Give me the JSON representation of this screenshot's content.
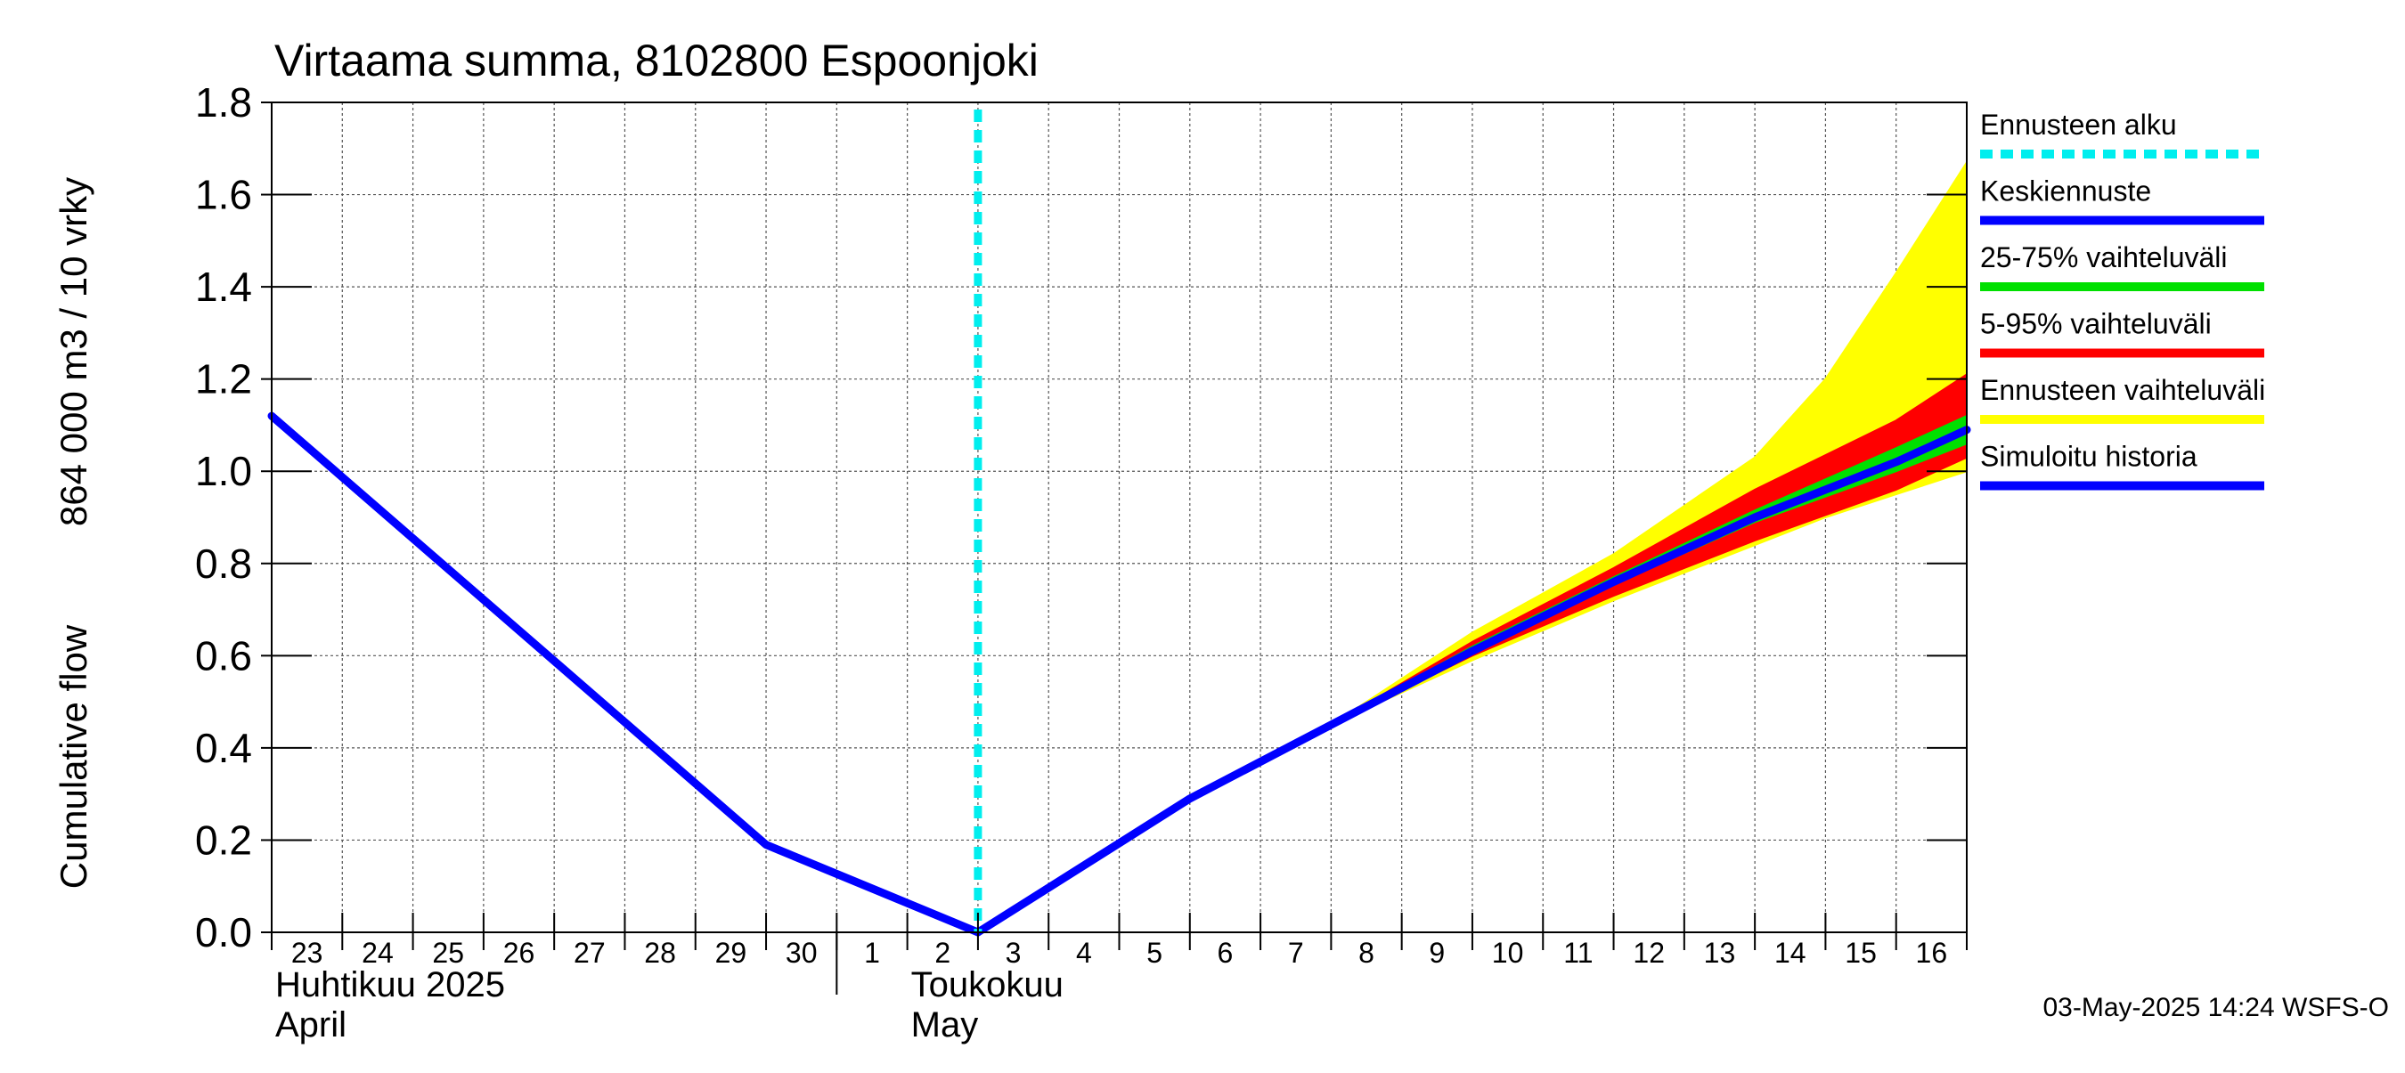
{
  "chart_data": {
    "type": "area",
    "title": "Virtaama summa, 8102800 Espoonjoki",
    "ylabel_line1": "Cumulative flow",
    "ylabel_line2": "864 000 m3 / 10 vrky",
    "ylim": [
      0,
      1.8
    ],
    "yticks": [
      0.0,
      0.2,
      0.4,
      0.6,
      0.8,
      1.0,
      1.2,
      1.4,
      1.6,
      1.8
    ],
    "ytick_labels": [
      "0.0",
      "0.2",
      "0.4",
      "0.6",
      "0.8",
      "1.0",
      "1.2",
      "1.4",
      "1.6",
      "1.8"
    ],
    "xlim": [
      0,
      24
    ],
    "x_day_labels": [
      "23",
      "24",
      "25",
      "26",
      "27",
      "28",
      "29",
      "30",
      "1",
      "2",
      "3",
      "4",
      "5",
      "6",
      "7",
      "8",
      "9",
      "10",
      "11",
      "12",
      "13",
      "14",
      "15",
      "16"
    ],
    "month_labels": [
      {
        "line1": "Huhtikuu  2025",
        "line2": "April",
        "start_x": 0
      },
      {
        "line1": "Toukokuu",
        "line2": "May",
        "start_x": 9
      }
    ],
    "month_divider_x": 8,
    "forecast_start_x": 10,
    "grid": true,
    "series": [
      {
        "name": "Simuloitu historia",
        "color": "#0000ff",
        "kind": "line",
        "x": [
          0,
          7,
          10
        ],
        "y": [
          1.12,
          0.19,
          0.0
        ]
      },
      {
        "name": "Keskiennuste",
        "color": "#0000ff",
        "kind": "line",
        "x": [
          10,
          13,
          15,
          17,
          19,
          21,
          23,
          24
        ],
        "y": [
          0.0,
          0.29,
          0.45,
          0.61,
          0.76,
          0.9,
          1.02,
          1.09
        ]
      },
      {
        "name": "25-75% vaihteluväli",
        "color": "#00e000",
        "kind": "band",
        "x": [
          15,
          17,
          19,
          21,
          23,
          24
        ],
        "low": [
          0.45,
          0.61,
          0.755,
          0.89,
          1.0,
          1.06
        ],
        "high": [
          0.45,
          0.62,
          0.77,
          0.915,
          1.05,
          1.12
        ]
      },
      {
        "name": "5-95% vaihteluväli",
        "color": "#ff0000",
        "kind": "band",
        "x": [
          15,
          17,
          19,
          21,
          23,
          24
        ],
        "low": [
          0.45,
          0.6,
          0.73,
          0.85,
          0.96,
          1.03
        ],
        "high": [
          0.45,
          0.63,
          0.79,
          0.96,
          1.11,
          1.21
        ]
      },
      {
        "name": "Ennusteen vaihteluväli",
        "color": "#ffff00",
        "kind": "band",
        "x": [
          15,
          17,
          19,
          21,
          22,
          23,
          24
        ],
        "low": [
          0.45,
          0.59,
          0.72,
          0.84,
          0.9,
          0.95,
          1.0
        ],
        "high": [
          0.45,
          0.65,
          0.82,
          1.03,
          1.2,
          1.43,
          1.67
        ]
      }
    ],
    "legend": [
      {
        "label": "Ennusteen alku",
        "color": "#00eeee",
        "style": "dashed"
      },
      {
        "label": "Keskiennuste",
        "color": "#0000ff",
        "style": "solid"
      },
      {
        "label": "25-75% vaihteluväli",
        "color": "#00e000",
        "style": "solid"
      },
      {
        "label": "5-95% vaihteluväli",
        "color": "#ff0000",
        "style": "solid"
      },
      {
        "label": "Ennusteen vaihteluväli",
        "color": "#ffff00",
        "style": "solid"
      },
      {
        "label": "Simuloitu historia",
        "color": "#0000ff",
        "style": "solid"
      }
    ],
    "legend_position": "right",
    "footer": "03-May-2025 14:24 WSFS-O"
  }
}
